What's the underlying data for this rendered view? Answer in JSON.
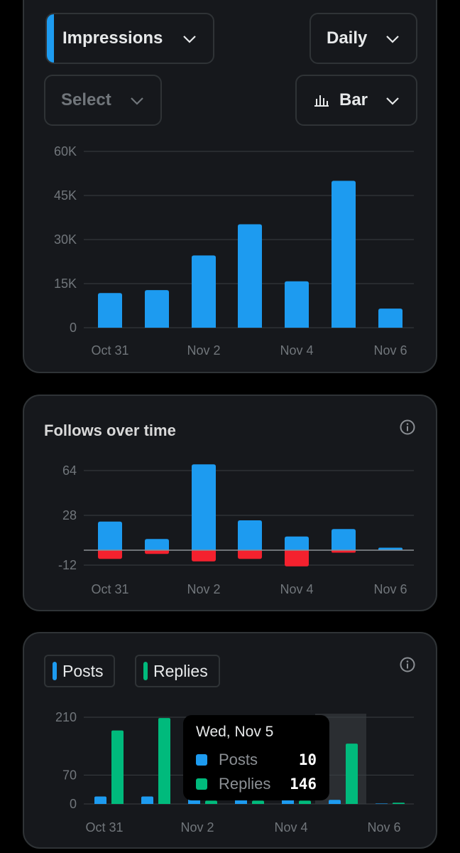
{
  "controls": {
    "metric": "Impressions",
    "period": "Daily",
    "compare": "Select",
    "chart_type": "Bar"
  },
  "follows_card": {
    "title": "Follows over time"
  },
  "posts_card": {
    "legend": [
      {
        "label": "Posts",
        "color": "#1d9bf0"
      },
      {
        "label": "Replies",
        "color": "#00ba7c"
      }
    ]
  },
  "tooltip": {
    "title": "Wed, Nov 5",
    "rows": [
      {
        "label": "Posts",
        "value": "10",
        "color": "#1d9bf0"
      },
      {
        "label": "Replies",
        "value": "146",
        "color": "#00ba7c"
      }
    ]
  },
  "colors": {
    "positive": "#1d9bf0",
    "negative": "#f4212e",
    "replies": "#00ba7c",
    "card_bg": "#16181c"
  },
  "chart_data": [
    {
      "type": "bar",
      "categories": [
        "Oct 31",
        "Nov 1",
        "Nov 2",
        "Nov 3",
        "Nov 4",
        "Nov 5",
        "Nov 6"
      ],
      "x_tick_labels": [
        "Oct 31",
        "Nov 2",
        "Nov 4",
        "Nov 6"
      ],
      "series": [
        {
          "values": [
            11800,
            12800,
            24600,
            35200,
            15800,
            50000,
            6500
          ]
        }
      ],
      "y_ticks": [
        0,
        15000,
        30000,
        45000,
        60000
      ],
      "y_tick_labels": [
        "0",
        "15K",
        "30K",
        "45K",
        "60K"
      ],
      "ylim": [
        0,
        60000
      ],
      "grid": true
    },
    {
      "type": "bar",
      "title": "Follows over time",
      "categories": [
        "Oct 31",
        "Nov 1",
        "Nov 2",
        "Nov 3",
        "Nov 4",
        "Nov 5",
        "Nov 6"
      ],
      "x_tick_labels": [
        "Oct 31",
        "Nov 2",
        "Nov 4",
        "Nov 6"
      ],
      "series": [
        {
          "values": [
            23,
            9,
            69,
            24,
            11,
            17,
            2
          ]
        },
        {
          "values": [
            -7,
            -3,
            -9,
            -7,
            -13,
            -2,
            0
          ]
        }
      ],
      "y_ticks": [
        -12,
        28,
        64
      ],
      "y_tick_labels": [
        "-12",
        "28",
        "64"
      ],
      "ylim": [
        -12,
        69
      ],
      "grid": true
    },
    {
      "type": "bar",
      "categories": [
        "Oct 31",
        "Nov 1",
        "Nov 2",
        "Nov 3",
        "Nov 4",
        "Nov 5",
        "Nov 6"
      ],
      "x_tick_labels": [
        "Oct 31",
        "Nov 2",
        "Nov 4",
        "Nov 6"
      ],
      "series": [
        {
          "name": "Posts",
          "values": [
            18,
            18,
            15,
            12,
            12,
            10,
            1
          ]
        },
        {
          "name": "Replies",
          "values": [
            178,
            208,
            8,
            8,
            8,
            146,
            3
          ]
        }
      ],
      "y_ticks": [
        0,
        70,
        210
      ],
      "y_tick_labels": [
        "0",
        "70",
        "210"
      ],
      "ylim": [
        0,
        210
      ],
      "highlight_category": "Nov 5",
      "grid": true
    }
  ]
}
